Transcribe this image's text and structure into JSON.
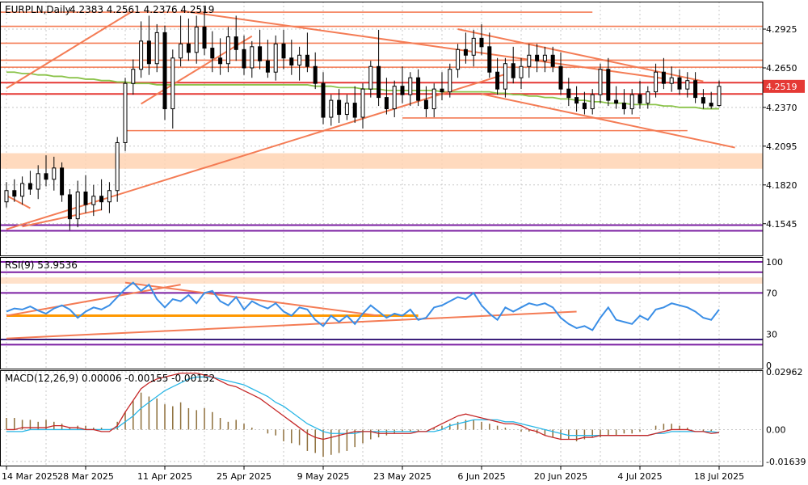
{
  "chart_data": [
    {
      "type": "candlestick",
      "panel": "price",
      "title": "EURPLN,Daily",
      "ohlc_header": [
        "4.2383",
        "4.2561",
        "4.2376",
        "4.2519"
      ],
      "last_price": 4.2519,
      "last_price_label": "4.2519",
      "ylim": [
        4.132,
        4.312
      ],
      "y_ticks": [
        4.2925,
        4.265,
        4.237,
        4.2095,
        4.182,
        4.1545
      ],
      "y_tick_labels": [
        "4.2925",
        "4.2650",
        "4.2370",
        "4.2095",
        "4.1820",
        "4.1545"
      ],
      "x_tick_labels": [
        "14 Mar 2025",
        "28 Mar 2025",
        "11 Apr 2025",
        "25 Apr 2025",
        "9 May 2025",
        "23 May 2025",
        "6 Jun 2025",
        "20 Jun 2025",
        "4 Jul 2025",
        "18 Jul 2025"
      ],
      "x_tick_index": [
        0,
        10,
        20,
        30,
        40,
        50,
        60,
        70,
        80,
        90
      ],
      "grid": true,
      "candles": [
        [
          4.17,
          4.184,
          4.166,
          4.178
        ],
        [
          4.178,
          4.186,
          4.17,
          4.174
        ],
        [
          4.174,
          4.188,
          4.168,
          4.183
        ],
        [
          4.183,
          4.192,
          4.175,
          4.179
        ],
        [
          4.179,
          4.196,
          4.172,
          4.19
        ],
        [
          4.19,
          4.203,
          4.181,
          4.186
        ],
        [
          4.186,
          4.202,
          4.178,
          4.194
        ],
        [
          4.194,
          4.198,
          4.17,
          4.175
        ],
        [
          4.175,
          4.179,
          4.15,
          4.158
        ],
        [
          4.158,
          4.185,
          4.152,
          4.177
        ],
        [
          4.177,
          4.189,
          4.162,
          4.168
        ],
        [
          4.168,
          4.182,
          4.16,
          4.174
        ],
        [
          4.174,
          4.186,
          4.164,
          4.17
        ],
        [
          4.17,
          4.184,
          4.162,
          4.178
        ],
        [
          4.178,
          4.216,
          4.17,
          4.212
        ],
        [
          4.212,
          4.258,
          4.206,
          4.254
        ],
        [
          4.254,
          4.271,
          4.246,
          4.264
        ],
        [
          4.264,
          4.298,
          4.258,
          4.284
        ],
        [
          4.284,
          4.302,
          4.26,
          4.268
        ],
        [
          4.268,
          4.296,
          4.262,
          4.29
        ],
        [
          4.29,
          4.295,
          4.228,
          4.236
        ],
        [
          4.236,
          4.278,
          4.222,
          4.272
        ],
        [
          4.272,
          4.302,
          4.266,
          4.282
        ],
        [
          4.282,
          4.3,
          4.27,
          4.276
        ],
        [
          4.276,
          4.302,
          4.268,
          4.294
        ],
        [
          4.294,
          4.308,
          4.274,
          4.279
        ],
        [
          4.279,
          4.291,
          4.262,
          4.272
        ],
        [
          4.272,
          4.286,
          4.26,
          4.268
        ],
        [
          4.268,
          4.294,
          4.262,
          4.287
        ],
        [
          4.287,
          4.302,
          4.27,
          4.278
        ],
        [
          4.278,
          4.288,
          4.26,
          4.265
        ],
        [
          4.265,
          4.284,
          4.258,
          4.28
        ],
        [
          4.28,
          4.292,
          4.264,
          4.27
        ],
        [
          4.27,
          4.285,
          4.258,
          4.262
        ],
        [
          4.262,
          4.288,
          4.256,
          4.282
        ],
        [
          4.282,
          4.292,
          4.264,
          4.272
        ],
        [
          4.272,
          4.285,
          4.26,
          4.267
        ],
        [
          4.267,
          4.28,
          4.256,
          4.274
        ],
        [
          4.274,
          4.29,
          4.262,
          4.266
        ],
        [
          4.266,
          4.276,
          4.25,
          4.254
        ],
        [
          4.254,
          4.262,
          4.225,
          4.23
        ],
        [
          4.23,
          4.246,
          4.224,
          4.242
        ],
        [
          4.242,
          4.25,
          4.226,
          4.232
        ],
        [
          4.232,
          4.246,
          4.228,
          4.24
        ],
        [
          4.24,
          4.252,
          4.226,
          4.23
        ],
        [
          4.23,
          4.254,
          4.222,
          4.25
        ],
        [
          4.25,
          4.27,
          4.244,
          4.266
        ],
        [
          4.266,
          4.292,
          4.238,
          4.244
        ],
        [
          4.244,
          4.258,
          4.232,
          4.236
        ],
        [
          4.236,
          4.256,
          4.23,
          4.252
        ],
        [
          4.252,
          4.266,
          4.24,
          4.246
        ],
        [
          4.246,
          4.262,
          4.238,
          4.258
        ],
        [
          4.258,
          4.264,
          4.238,
          4.242
        ],
        [
          4.242,
          4.252,
          4.23,
          4.236
        ],
        [
          4.236,
          4.254,
          4.23,
          4.25
        ],
        [
          4.25,
          4.262,
          4.242,
          4.248
        ],
        [
          4.248,
          4.268,
          4.244,
          4.264
        ],
        [
          4.264,
          4.282,
          4.258,
          4.278
        ],
        [
          4.278,
          4.29,
          4.268,
          4.274
        ],
        [
          4.274,
          4.292,
          4.266,
          4.286
        ],
        [
          4.286,
          4.296,
          4.274,
          4.28
        ],
        [
          4.28,
          4.29,
          4.258,
          4.262
        ],
        [
          4.262,
          4.272,
          4.246,
          4.25
        ],
        [
          4.25,
          4.272,
          4.244,
          4.268
        ],
        [
          4.268,
          4.28,
          4.254,
          4.258
        ],
        [
          4.258,
          4.272,
          4.25,
          4.266
        ],
        [
          4.266,
          4.282,
          4.258,
          4.274
        ],
        [
          4.274,
          4.282,
          4.262,
          4.27
        ],
        [
          4.27,
          4.28,
          4.262,
          4.274
        ],
        [
          4.274,
          4.28,
          4.262,
          4.266
        ],
        [
          4.266,
          4.276,
          4.246,
          4.25
        ],
        [
          4.25,
          4.258,
          4.238,
          4.244
        ],
        [
          4.244,
          4.252,
          4.234,
          4.24
        ],
        [
          4.24,
          4.248,
          4.232,
          4.236
        ],
        [
          4.236,
          4.25,
          4.232,
          4.246
        ],
        [
          4.246,
          4.268,
          4.24,
          4.264
        ],
        [
          4.264,
          4.272,
          4.238,
          4.242
        ],
        [
          4.242,
          4.252,
          4.236,
          4.24
        ],
        [
          4.24,
          4.25,
          4.232,
          4.236
        ],
        [
          4.236,
          4.25,
          4.232,
          4.246
        ],
        [
          4.246,
          4.256,
          4.236,
          4.24
        ],
        [
          4.24,
          4.252,
          4.236,
          4.248
        ],
        [
          4.248,
          4.268,
          4.244,
          4.262
        ],
        [
          4.262,
          4.272,
          4.25,
          4.254
        ],
        [
          4.254,
          4.266,
          4.248,
          4.258
        ],
        [
          4.258,
          4.264,
          4.246,
          4.25
        ],
        [
          4.25,
          4.262,
          4.244,
          4.256
        ],
        [
          4.256,
          4.262,
          4.24,
          4.244
        ],
        [
          4.244,
          4.25,
          4.236,
          4.24
        ],
        [
          4.24,
          4.248,
          4.236,
          4.238
        ],
        [
          4.2383,
          4.2561,
          4.2376,
          4.2519
        ]
      ],
      "moving_average": [
        4.262,
        4.262,
        4.261,
        4.261,
        4.26,
        4.26,
        4.259,
        4.259,
        4.258,
        4.258,
        4.257,
        4.257,
        4.256,
        4.256,
        4.255,
        4.255,
        4.254,
        4.254,
        4.254,
        4.253,
        4.253,
        4.253,
        4.253,
        4.253,
        4.253,
        4.253,
        4.253,
        4.253,
        4.253,
        4.253,
        4.253,
        4.253,
        4.253,
        4.253,
        4.253,
        4.253,
        4.253,
        4.253,
        4.253,
        4.252,
        4.252,
        4.252,
        4.251,
        4.251,
        4.251,
        4.25,
        4.25,
        4.25,
        4.249,
        4.249,
        4.249,
        4.249,
        4.249,
        4.249,
        4.249,
        4.248,
        4.248,
        4.248,
        4.248,
        4.248,
        4.248,
        4.248,
        4.247,
        4.247,
        4.246,
        4.246,
        4.245,
        4.245,
        4.244,
        4.244,
        4.243,
        4.243,
        4.242,
        4.242,
        4.241,
        4.241,
        4.24,
        4.24,
        4.24,
        4.239,
        4.239,
        4.239,
        4.239,
        4.238,
        4.238,
        4.237,
        4.237,
        4.237,
        4.236,
        4.236,
        4.236
      ],
      "horizontal_lines": [
        {
          "y": 4.3045,
          "x0": 0,
          "x1": 74
        },
        {
          "y": 4.2945,
          "x0": 0,
          "x1": 999
        },
        {
          "y": 4.2825,
          "x0": 0,
          "x1": 999
        },
        {
          "y": 4.2705,
          "x0": 0,
          "x1": 999
        },
        {
          "y": 4.2655,
          "x0": 0,
          "x1": 999
        },
        {
          "y": 4.2465,
          "x0": 50,
          "x1": 999
        },
        {
          "y": 4.2295,
          "x0": 50,
          "x1": 80
        },
        {
          "y": 4.2205,
          "x0": 15,
          "x1": 86
        },
        {
          "y": 4.2545,
          "x0": 0,
          "x1": 999,
          "strong": true
        },
        {
          "y": 4.2465,
          "x0": 0,
          "x1": 999,
          "strong": true
        }
      ],
      "purple_lines": [
        4.1535,
        4.1495
      ],
      "zone": [
        4.2045,
        4.1935
      ],
      "trendlines": [
        {
          "x0": 0,
          "y0": 4.2505,
          "x1": 16,
          "y1": 4.3055
        },
        {
          "x0": 17,
          "y0": 4.2395,
          "x1": 31,
          "y1": 4.2875
        },
        {
          "x0": 22,
          "y0": 4.3055,
          "x1": 83,
          "y1": 4.2575
        },
        {
          "x0": 0,
          "y0": 4.1505,
          "x1": 63,
          "y1": 4.2605
        },
        {
          "x0": 57,
          "y0": 4.2925,
          "x1": 88,
          "y1": 4.2555
        },
        {
          "x0": 60,
          "y0": 4.2465,
          "x1": 92,
          "y1": 4.2085
        },
        {
          "x0": 0,
          "y0": 4.1745,
          "x1": 3,
          "y1": 4.1655
        },
        {
          "x0": 2,
          "y0": 4.1525,
          "x1": 12,
          "y1": 4.1645
        }
      ]
    },
    {
      "type": "line",
      "panel": "rsi",
      "title": "RSI(9) 53.9536",
      "ylim": [
        0,
        100
      ],
      "y_ticks": [
        100,
        70,
        30,
        0
      ],
      "y_tick_labels": [
        "100",
        "70",
        "30",
        "0"
      ],
      "levels": [
        {
          "y": 100,
          "color": "#7b1fa2"
        },
        {
          "y": 90,
          "color": "#7b1fa2"
        },
        {
          "y": 79,
          "color": "#f0a070",
          "band_to": 85
        },
        {
          "y": 70,
          "color": "#7b1fa2"
        },
        {
          "y": 25,
          "color": "#3a1f7a"
        },
        {
          "y": 20,
          "color": "#7b1fa2"
        }
      ],
      "values": [
        52,
        55,
        54,
        57,
        53,
        50,
        55,
        58,
        54,
        46,
        52,
        56,
        54,
        58,
        66,
        74,
        80,
        72,
        78,
        64,
        56,
        64,
        62,
        68,
        60,
        70,
        72,
        62,
        58,
        66,
        54,
        62,
        58,
        55,
        60,
        52,
        48,
        56,
        54,
        44,
        38,
        48,
        42,
        48,
        40,
        50,
        58,
        52,
        46,
        50,
        48,
        54,
        44,
        46,
        56,
        58,
        62,
        66,
        64,
        70,
        58,
        50,
        44,
        56,
        52,
        56,
        60,
        58,
        60,
        56,
        46,
        40,
        36,
        38,
        34,
        46,
        56,
        44,
        42,
        40,
        48,
        44,
        54,
        56,
        60,
        58,
        56,
        52,
        46,
        44,
        53.95
      ],
      "lines": [
        {
          "x0": 0,
          "y0": 48,
          "x1": 52,
          "y1": 48,
          "color": "#ff9800",
          "width": 3
        },
        {
          "x0": 0,
          "y0": 48,
          "x1": 22,
          "y1": 78,
          "color": "#f47c55",
          "width": 2
        },
        {
          "x0": 15,
          "y0": 80,
          "x1": 47,
          "y1": 48,
          "color": "#f47c55",
          "width": 2
        },
        {
          "x0": 0,
          "y0": 26,
          "x1": 72,
          "y1": 52,
          "color": "#f47c55",
          "width": 2
        }
      ]
    },
    {
      "type": "bar+line",
      "panel": "macd",
      "title": "MACD(12,26,9) 0.00006 -0.00155 -0.00152",
      "ylim": [
        -0.0185,
        0.0305
      ],
      "y_ticks": [
        0.02962,
        0.0,
        -0.01639
      ],
      "y_tick_labels": [
        "0.02962",
        "0.00",
        "-0.01639"
      ],
      "histogram": [
        0.006,
        0.006,
        0.005,
        0.005,
        0.004,
        0.005,
        0.004,
        0.003,
        0.001,
        0.002,
        0.002,
        0.001,
        0.001,
        0.0,
        0.004,
        0.009,
        0.015,
        0.019,
        0.017,
        0.016,
        0.013,
        0.012,
        0.014,
        0.011,
        0.01,
        0.011,
        0.009,
        0.006,
        0.004,
        0.005,
        0.003,
        0.001,
        0.0,
        -0.002,
        -0.003,
        -0.006,
        -0.007,
        -0.008,
        -0.011,
        -0.012,
        -0.014,
        -0.013,
        -0.012,
        -0.011,
        -0.009,
        -0.007,
        -0.005,
        -0.004,
        -0.003,
        -0.002,
        -0.001,
        -0.001,
        -0.001,
        0.0,
        0.001,
        0.002,
        0.003,
        0.004,
        0.005,
        0.005,
        0.004,
        0.003,
        0.002,
        0.001,
        0.0,
        -0.001,
        -0.001,
        -0.002,
        -0.003,
        -0.004,
        -0.005,
        -0.005,
        -0.006,
        -0.005,
        -0.004,
        -0.004,
        -0.003,
        -0.003,
        -0.002,
        -0.002,
        -0.001,
        0.0,
        0.002,
        0.003,
        0.003,
        0.002,
        0.001,
        0.0,
        -0.001,
        -0.001,
        0.0001
      ],
      "macd_line": [
        0.0,
        0.0,
        0.001,
        0.001,
        0.001,
        0.001,
        0.002,
        0.002,
        0.001,
        0.001,
        0.0,
        0.0,
        -0.001,
        -0.001,
        0.002,
        0.009,
        0.015,
        0.021,
        0.024,
        0.026,
        0.027,
        0.028,
        0.029,
        0.029,
        0.029,
        0.028,
        0.027,
        0.025,
        0.023,
        0.022,
        0.02,
        0.018,
        0.016,
        0.013,
        0.01,
        0.007,
        0.004,
        0.001,
        -0.002,
        -0.004,
        -0.005,
        -0.004,
        -0.003,
        -0.002,
        -0.001,
        -0.001,
        -0.001,
        -0.002,
        -0.002,
        -0.002,
        -0.002,
        -0.002,
        -0.001,
        -0.001,
        0.001,
        0.003,
        0.005,
        0.007,
        0.008,
        0.007,
        0.006,
        0.005,
        0.004,
        0.003,
        0.003,
        0.002,
        0.0,
        -0.001,
        -0.003,
        -0.004,
        -0.005,
        -0.005,
        -0.005,
        -0.004,
        -0.004,
        -0.003,
        -0.003,
        -0.003,
        -0.003,
        -0.003,
        -0.003,
        -0.003,
        -0.002,
        -0.001,
        0.0,
        0.0,
        0.0,
        -0.001,
        -0.001,
        -0.002,
        -0.00155
      ],
      "signal_line": [
        -0.001,
        -0.001,
        -0.001,
        0.0,
        0.0,
        0.0,
        0.0,
        0.0,
        0.0,
        0.0,
        0.0,
        0.0,
        0.0,
        0.0,
        0.001,
        0.004,
        0.007,
        0.011,
        0.014,
        0.017,
        0.02,
        0.022,
        0.024,
        0.026,
        0.027,
        0.027,
        0.027,
        0.026,
        0.025,
        0.024,
        0.023,
        0.021,
        0.019,
        0.017,
        0.014,
        0.012,
        0.009,
        0.006,
        0.003,
        0.001,
        -0.001,
        -0.002,
        -0.002,
        -0.002,
        -0.002,
        -0.001,
        -0.001,
        -0.001,
        -0.001,
        -0.001,
        -0.001,
        -0.001,
        -0.001,
        -0.001,
        -0.001,
        0.0,
        0.002,
        0.003,
        0.004,
        0.005,
        0.005,
        0.005,
        0.005,
        0.004,
        0.004,
        0.003,
        0.002,
        0.001,
        0.0,
        -0.001,
        -0.002,
        -0.003,
        -0.003,
        -0.003,
        -0.003,
        -0.003,
        -0.003,
        -0.003,
        -0.003,
        -0.003,
        -0.003,
        -0.003,
        -0.002,
        -0.002,
        -0.001,
        -0.001,
        -0.001,
        -0.001,
        -0.001,
        -0.001,
        -0.00152
      ]
    }
  ],
  "colors": {
    "bull_candle": "#ffffff",
    "bear_candle": "#000000",
    "moving_average": "#8bc34a",
    "horizontal_level": "#f47c55",
    "strong_level": "#e53935",
    "purple_level": "#7b1fa2",
    "zone": "#ffd4b3",
    "trendline": "#f47c55",
    "last_price_box": "#e53935",
    "rsi_line": "#3a8ee6",
    "macd_line": "#c62828",
    "signal_line": "#29b6e6",
    "histogram": "#8d6e3a",
    "grid": "#c8c8c8"
  }
}
